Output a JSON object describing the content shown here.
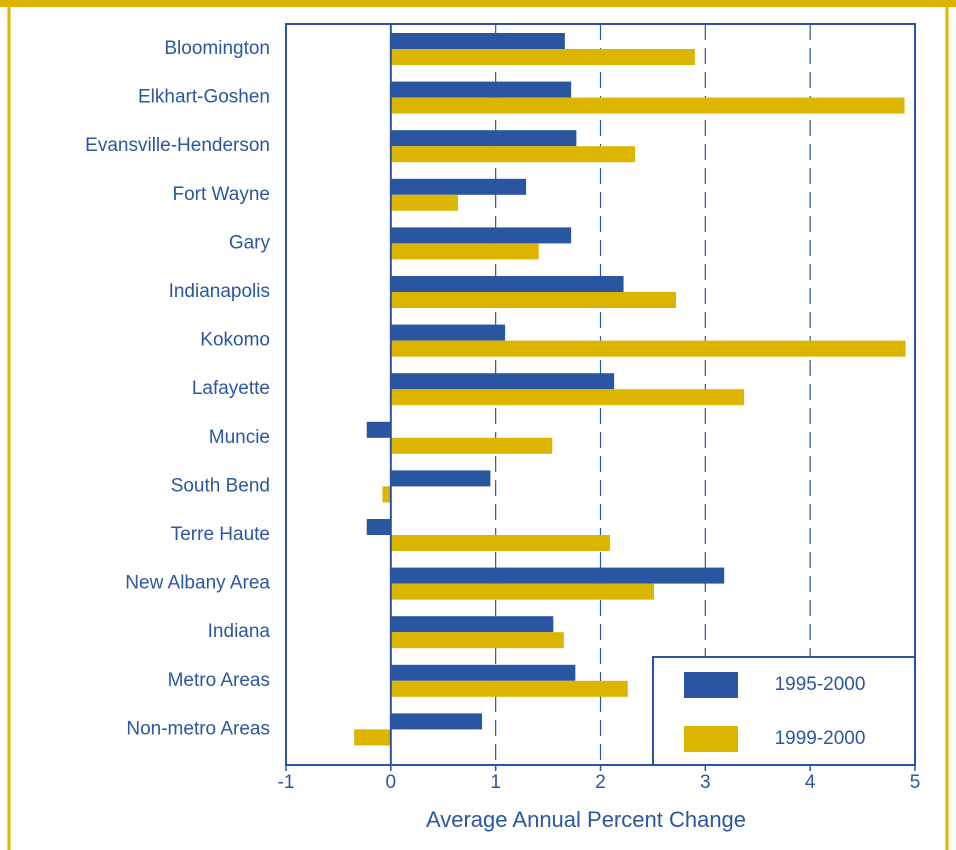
{
  "chart_data": {
    "type": "bar",
    "orientation": "horizontal",
    "xlabel": "Average Annual Percent Change",
    "categories": [
      "Bloomington",
      "Elkhart-Goshen",
      "Evansville-Henderson",
      "Fort Wayne",
      "Gary",
      "Indianapolis",
      "Kokomo",
      "Lafayette",
      "Muncie",
      "South Bend",
      "Terre Haute",
      "New Albany Area",
      "Indiana",
      "Metro Areas",
      "Non-metro Areas"
    ],
    "series": [
      {
        "name": "1995-2000",
        "color": "#2a55a0",
        "values": [
          1.66,
          1.72,
          1.77,
          1.29,
          1.72,
          2.22,
          1.09,
          2.13,
          -0.23,
          0.95,
          -0.23,
          3.18,
          1.55,
          1.76,
          0.87
        ]
      },
      {
        "name": "1999-2000",
        "color": "#dbb500",
        "values": [
          2.9,
          4.9,
          2.33,
          0.64,
          1.41,
          2.72,
          4.91,
          3.37,
          1.54,
          -0.08,
          2.09,
          2.51,
          1.65,
          2.26,
          -0.35
        ]
      }
    ],
    "xlim": [
      -1,
      5
    ],
    "xticks": [
      -1,
      0,
      1,
      2,
      3,
      4,
      5
    ],
    "grid": true,
    "legend": "lower right"
  }
}
